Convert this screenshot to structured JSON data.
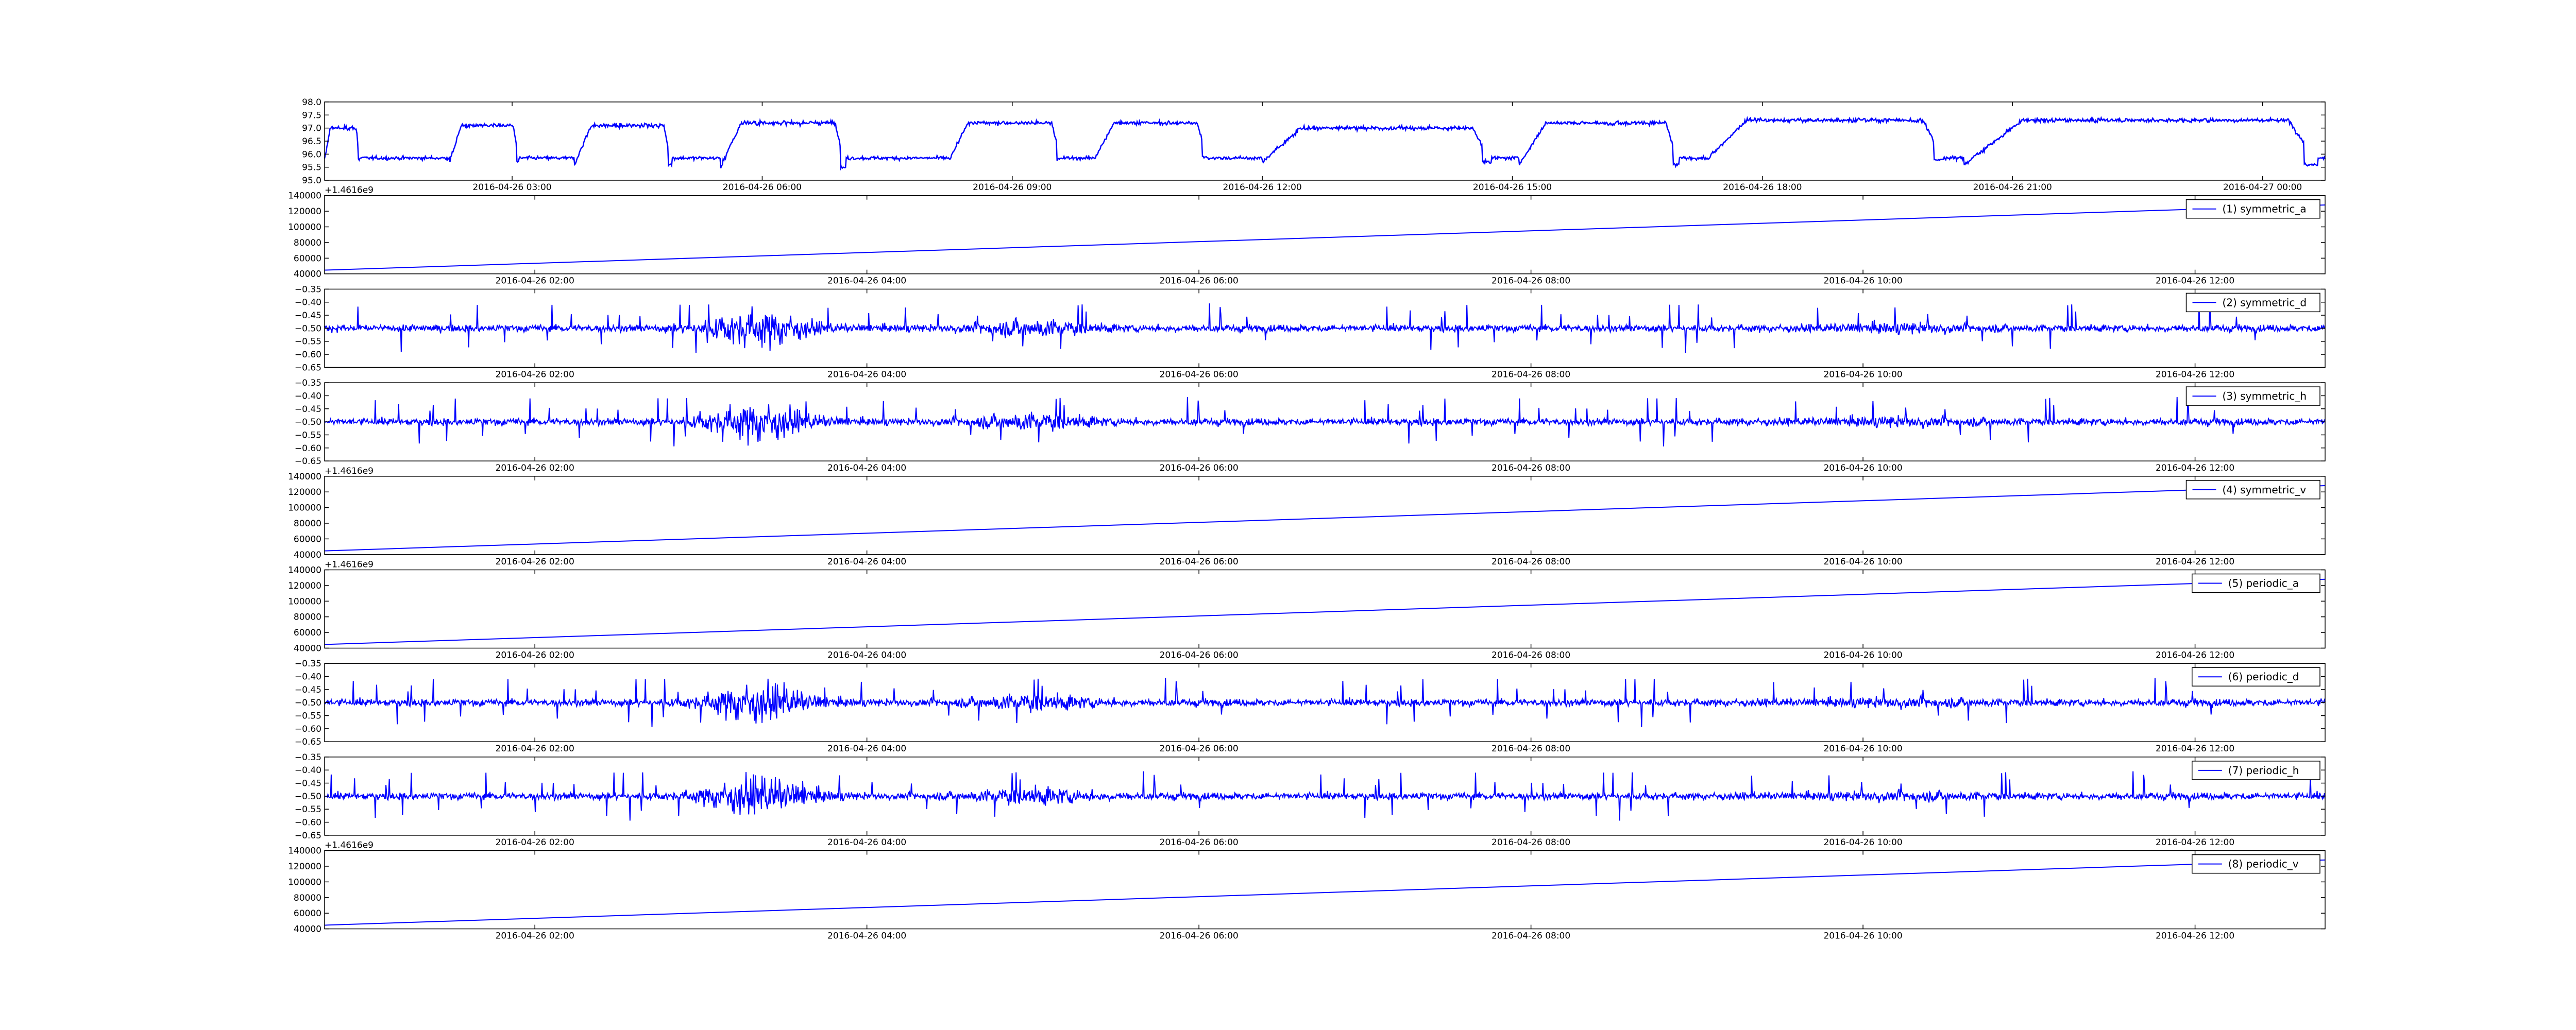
{
  "chart_data": [
    {
      "type": "line",
      "x_axis": "time",
      "ylim": [
        95.0,
        98.0
      ],
      "y_ticks": [
        "98.0",
        "97.5",
        "97.0",
        "96.5",
        "96.0",
        "95.5",
        "95.0"
      ],
      "x_ticks": [
        "2016-04-26 03:00",
        "2016-04-26 06:00",
        "2016-04-26 09:00",
        "2016-04-26 12:00",
        "2016-04-26 15:00",
        "2016-04-26 18:00",
        "2016-04-26 21:00",
        "2016-04-27 00:00"
      ],
      "x_range": [
        "2016-04-26 00:45",
        "2016-04-27 00:45"
      ],
      "color": "#0000ff",
      "series": [
        {
          "pattern": "step-like switching between a low level near 95.9 and a high level near 96.9–97.3",
          "segments": [
            {
              "start": "00:45",
              "end": "01:10",
              "low": 95.8,
              "high": 97.0
            },
            {
              "start": "02:15",
              "end": "03:05",
              "low": 95.7,
              "high": 97.1
            },
            {
              "start": "03:45",
              "end": "04:55",
              "low": 95.6,
              "high": 97.1
            },
            {
              "start": "05:30",
              "end": "07:00",
              "low": 95.5,
              "high": 97.2
            },
            {
              "start": "08:15",
              "end": "09:35",
              "low": 95.8,
              "high": 97.2
            },
            {
              "start": "10:00",
              "end": "11:20",
              "low": 95.9,
              "high": 97.2
            },
            {
              "start": "12:00",
              "end": "14:45",
              "low": 95.7,
              "high": 97.0
            },
            {
              "start": "15:05",
              "end": "17:00",
              "low": 95.6,
              "high": 97.2
            },
            {
              "start": "17:20",
              "end": "20:10",
              "low": 95.8,
              "high": 97.3
            },
            {
              "start": "20:25",
              "end": "24:40",
              "low": 95.6,
              "high": 97.3
            }
          ]
        }
      ]
    },
    {
      "type": "line",
      "ylim": [
        40000,
        140000
      ],
      "y_ticks": [
        "140000",
        "120000",
        "100000",
        "80000",
        "60000",
        "40000"
      ],
      "y_offset_label": "+1.4616e9",
      "x_ticks": [
        "2016-04-26 02:00",
        "2016-04-26 04:00",
        "2016-04-26 06:00",
        "2016-04-26 08:00",
        "2016-04-26 10:00",
        "2016-04-26 12:00"
      ],
      "x_range": [
        "2016-04-26 00:44",
        "2016-04-26 12:47"
      ],
      "series": [
        {
          "name": "(1) symmetric_a",
          "x": [
            "2016-04-26 00:44",
            "2016-04-26 12:47"
          ],
          "values": [
            44700,
            128000
          ]
        }
      ],
      "legend_position": "top-right",
      "color": "#0000ff"
    },
    {
      "type": "line",
      "ylim": [
        -0.65,
        -0.35
      ],
      "y_ticks": [
        "−0.35",
        "−0.40",
        "−0.45",
        "−0.50",
        "−0.55",
        "−0.60",
        "−0.65"
      ],
      "x_ticks": [
        "2016-04-26 02:00",
        "2016-04-26 04:00",
        "2016-04-26 06:00",
        "2016-04-26 08:00",
        "2016-04-26 10:00",
        "2016-04-26 12:00"
      ],
      "x_range": [
        "2016-04-26 00:44",
        "2016-04-26 12:47"
      ],
      "series": [
        {
          "name": "(2) symmetric_d",
          "pattern": "noisy signal centred near -0.50, strong burst around 03:20, moderate burst around 05:00"
        }
      ],
      "legend_position": "top-right",
      "color": "#0000ff"
    },
    {
      "type": "line",
      "ylim": [
        -0.65,
        -0.35
      ],
      "y_ticks": [
        "−0.35",
        "−0.40",
        "−0.45",
        "−0.50",
        "−0.55",
        "−0.60",
        "−0.65"
      ],
      "x_ticks": [
        "2016-04-26 02:00",
        "2016-04-26 04:00",
        "2016-04-26 06:00",
        "2016-04-26 08:00",
        "2016-04-26 10:00",
        "2016-04-26 12:00"
      ],
      "x_range": [
        "2016-04-26 00:44",
        "2016-04-26 12:47"
      ],
      "series": [
        {
          "name": "(3) symmetric_h",
          "pattern": "noisy signal centred near -0.50, strong burst around 03:20, moderate burst around 05:00"
        }
      ],
      "legend_position": "top-right",
      "color": "#0000ff"
    },
    {
      "type": "line",
      "ylim": [
        40000,
        140000
      ],
      "y_ticks": [
        "140000",
        "120000",
        "100000",
        "80000",
        "60000",
        "40000"
      ],
      "y_offset_label": "+1.4616e9",
      "x_ticks": [
        "2016-04-26 02:00",
        "2016-04-26 04:00",
        "2016-04-26 06:00",
        "2016-04-26 08:00",
        "2016-04-26 10:00",
        "2016-04-26 12:00"
      ],
      "x_range": [
        "2016-04-26 00:44",
        "2016-04-26 12:47"
      ],
      "series": [
        {
          "name": "(4) symmetric_v",
          "x": [
            "2016-04-26 00:44",
            "2016-04-26 12:47"
          ],
          "values": [
            44700,
            128000
          ]
        }
      ],
      "legend_position": "top-right",
      "color": "#0000ff"
    },
    {
      "type": "line",
      "ylim": [
        40000,
        140000
      ],
      "y_ticks": [
        "140000",
        "120000",
        "100000",
        "80000",
        "60000",
        "40000"
      ],
      "y_offset_label": "+1.4616e9",
      "x_ticks": [
        "2016-04-26 02:00",
        "2016-04-26 04:00",
        "2016-04-26 06:00",
        "2016-04-26 08:00",
        "2016-04-26 10:00",
        "2016-04-26 12:00"
      ],
      "x_range": [
        "2016-04-26 00:44",
        "2016-04-26 12:47"
      ],
      "series": [
        {
          "name": "(5) periodic_a",
          "x": [
            "2016-04-26 00:44",
            "2016-04-26 12:47"
          ],
          "values": [
            44700,
            128000
          ]
        }
      ],
      "legend_position": "top-right",
      "color": "#0000ff"
    },
    {
      "type": "line",
      "ylim": [
        -0.65,
        -0.35
      ],
      "y_ticks": [
        "−0.35",
        "−0.40",
        "−0.45",
        "−0.50",
        "−0.55",
        "−0.60",
        "−0.65"
      ],
      "x_ticks": [
        "2016-04-26 02:00",
        "2016-04-26 04:00",
        "2016-04-26 06:00",
        "2016-04-26 08:00",
        "2016-04-26 10:00",
        "2016-04-26 12:00"
      ],
      "x_range": [
        "2016-04-26 00:44",
        "2016-04-26 12:47"
      ],
      "series": [
        {
          "name": "(6) periodic_d",
          "pattern": "noisy signal centred near -0.50, strong burst around 03:20, moderate burst around 05:00"
        }
      ],
      "legend_position": "top-right",
      "color": "#0000ff"
    },
    {
      "type": "line",
      "ylim": [
        -0.65,
        -0.35
      ],
      "y_ticks": [
        "−0.35",
        "−0.40",
        "−0.45",
        "−0.50",
        "−0.55",
        "−0.60",
        "−0.65"
      ],
      "x_ticks": [
        "2016-04-26 02:00",
        "2016-04-26 04:00",
        "2016-04-26 06:00",
        "2016-04-26 08:00",
        "2016-04-26 10:00",
        "2016-04-26 12:00"
      ],
      "x_range": [
        "2016-04-26 00:44",
        "2016-04-26 12:47"
      ],
      "series": [
        {
          "name": "(7) periodic_h",
          "pattern": "noisy signal centred near -0.50, strong burst around 03:20, moderate burst around 05:00"
        }
      ],
      "legend_position": "top-right",
      "color": "#0000ff"
    },
    {
      "type": "line",
      "ylim": [
        40000,
        140000
      ],
      "y_ticks": [
        "140000",
        "120000",
        "100000",
        "80000",
        "60000",
        "40000"
      ],
      "y_offset_label": "+1.4616e9",
      "x_ticks": [
        "2016-04-26 02:00",
        "2016-04-26 04:00",
        "2016-04-26 06:00",
        "2016-04-26 08:00",
        "2016-04-26 10:00",
        "2016-04-26 12:00"
      ],
      "x_range": [
        "2016-04-26 00:44",
        "2016-04-26 12:47"
      ],
      "series": [
        {
          "name": "(8) periodic_v",
          "x": [
            "2016-04-26 00:44",
            "2016-04-26 12:47"
          ],
          "values": [
            44700,
            128000
          ]
        }
      ],
      "legend_position": "top-right",
      "color": "#0000ff"
    }
  ]
}
